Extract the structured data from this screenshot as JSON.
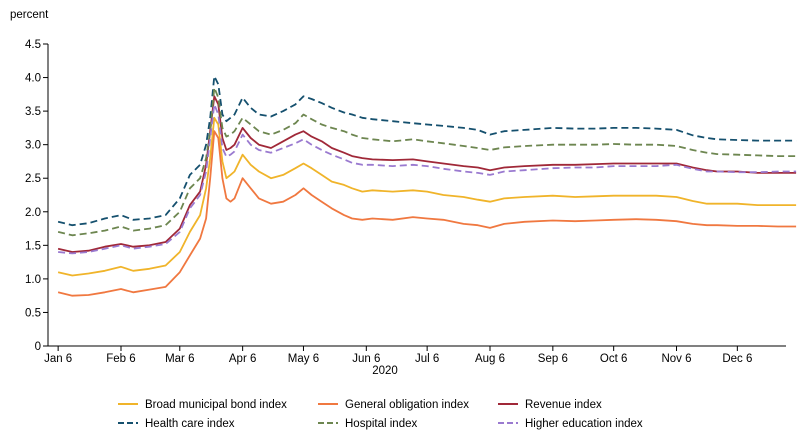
{
  "chart_data": {
    "type": "line",
    "ylabel": "percent",
    "xlabel": "2020",
    "ylim": [
      0,
      4.5
    ],
    "yticks": [
      "0",
      "0.5",
      "1.0",
      "1.5",
      "2.0",
      "2.5",
      "3.0",
      "3.5",
      "4.0",
      "4.5"
    ],
    "xlim": [
      0,
      364
    ],
    "xticks": [
      {
        "label": "Jan 6",
        "day": 5
      },
      {
        "label": "Feb 6",
        "day": 36
      },
      {
        "label": "Mar 6",
        "day": 65
      },
      {
        "label": "Apr 6",
        "day": 96
      },
      {
        "label": "May 6",
        "day": 126
      },
      {
        "label": "Jun 6",
        "day": 157
      },
      {
        "label": "Jul 6",
        "day": 187
      },
      {
        "label": "Aug 6",
        "day": 218
      },
      {
        "label": "Sep 6",
        "day": 249
      },
      {
        "label": "Oct 6",
        "day": 279
      },
      {
        "label": "Nov 6",
        "day": 310
      },
      {
        "label": "Dec 6",
        "day": 340
      }
    ],
    "x": [
      5,
      12,
      20,
      28,
      36,
      42,
      50,
      58,
      65,
      70,
      75,
      78,
      80,
      82,
      84,
      86,
      88,
      90,
      92,
      96,
      100,
      104,
      110,
      116,
      122,
      126,
      130,
      135,
      140,
      146,
      150,
      155,
      160,
      170,
      180,
      187,
      195,
      205,
      212,
      218,
      225,
      235,
      249,
      260,
      270,
      279,
      290,
      300,
      310,
      318,
      325,
      330,
      340,
      350,
      360,
      369
    ],
    "series": [
      {
        "name": "Broad municipal bond index",
        "color": "#f0b42a",
        "dash": false,
        "values": [
          1.1,
          1.05,
          1.08,
          1.12,
          1.18,
          1.12,
          1.15,
          1.2,
          1.4,
          1.7,
          1.95,
          2.35,
          2.8,
          3.4,
          3.3,
          2.75,
          2.5,
          2.55,
          2.6,
          2.85,
          2.7,
          2.6,
          2.5,
          2.55,
          2.65,
          2.72,
          2.65,
          2.55,
          2.45,
          2.4,
          2.35,
          2.3,
          2.32,
          2.3,
          2.32,
          2.3,
          2.25,
          2.22,
          2.18,
          2.15,
          2.2,
          2.22,
          2.24,
          2.22,
          2.23,
          2.24,
          2.24,
          2.24,
          2.22,
          2.16,
          2.12,
          2.12,
          2.12,
          2.1,
          2.1,
          2.1
        ]
      },
      {
        "name": "General obligation index",
        "color": "#f07840",
        "dash": false,
        "values": [
          0.8,
          0.75,
          0.76,
          0.8,
          0.85,
          0.8,
          0.84,
          0.88,
          1.1,
          1.35,
          1.6,
          1.9,
          2.5,
          3.2,
          3.1,
          2.5,
          2.2,
          2.15,
          2.2,
          2.5,
          2.35,
          2.2,
          2.12,
          2.15,
          2.25,
          2.35,
          2.25,
          2.15,
          2.05,
          1.95,
          1.9,
          1.88,
          1.9,
          1.88,
          1.92,
          1.9,
          1.88,
          1.82,
          1.8,
          1.76,
          1.82,
          1.85,
          1.87,
          1.86,
          1.87,
          1.88,
          1.89,
          1.88,
          1.86,
          1.82,
          1.8,
          1.8,
          1.79,
          1.79,
          1.78,
          1.78
        ]
      },
      {
        "name": "Revenue index",
        "color": "#a02838",
        "dash": false,
        "values": [
          1.45,
          1.4,
          1.42,
          1.48,
          1.52,
          1.48,
          1.5,
          1.55,
          1.75,
          2.1,
          2.3,
          2.7,
          3.2,
          3.72,
          3.6,
          3.1,
          2.92,
          2.95,
          3.0,
          3.25,
          3.1,
          3.0,
          2.95,
          3.05,
          3.15,
          3.2,
          3.12,
          3.05,
          2.95,
          2.88,
          2.83,
          2.8,
          2.78,
          2.77,
          2.78,
          2.75,
          2.72,
          2.68,
          2.66,
          2.62,
          2.66,
          2.68,
          2.7,
          2.7,
          2.71,
          2.72,
          2.72,
          2.72,
          2.72,
          2.66,
          2.62,
          2.6,
          2.6,
          2.58,
          2.58,
          2.58
        ]
      },
      {
        "name": "Health care index",
        "color": "#15506e",
        "dash": true,
        "values": [
          1.85,
          1.8,
          1.83,
          1.9,
          1.95,
          1.88,
          1.9,
          1.95,
          2.2,
          2.55,
          2.7,
          3.0,
          3.4,
          4.02,
          3.9,
          3.45,
          3.35,
          3.4,
          3.45,
          3.7,
          3.55,
          3.45,
          3.42,
          3.5,
          3.6,
          3.72,
          3.68,
          3.62,
          3.55,
          3.48,
          3.45,
          3.4,
          3.38,
          3.35,
          3.32,
          3.3,
          3.28,
          3.25,
          3.22,
          3.15,
          3.2,
          3.22,
          3.25,
          3.24,
          3.24,
          3.25,
          3.25,
          3.24,
          3.22,
          3.14,
          3.1,
          3.08,
          3.07,
          3.06,
          3.06,
          3.06
        ]
      },
      {
        "name": "Hospital index",
        "color": "#6d8650",
        "dash": true,
        "values": [
          1.7,
          1.65,
          1.68,
          1.72,
          1.78,
          1.72,
          1.75,
          1.8,
          2.0,
          2.35,
          2.5,
          2.8,
          3.2,
          3.85,
          3.7,
          3.25,
          3.12,
          3.15,
          3.2,
          3.4,
          3.3,
          3.2,
          3.15,
          3.22,
          3.32,
          3.45,
          3.38,
          3.3,
          3.25,
          3.2,
          3.15,
          3.1,
          3.08,
          3.05,
          3.08,
          3.05,
          3.02,
          2.98,
          2.95,
          2.92,
          2.96,
          2.98,
          3.0,
          3.0,
          3.0,
          3.01,
          3.0,
          3.0,
          2.98,
          2.92,
          2.88,
          2.86,
          2.85,
          2.84,
          2.83,
          2.83
        ]
      },
      {
        "name": "Higher education index",
        "color": "#9a7ad0",
        "dash": true,
        "values": [
          1.4,
          1.38,
          1.4,
          1.45,
          1.5,
          1.45,
          1.48,
          1.52,
          1.7,
          2.05,
          2.25,
          2.6,
          3.1,
          3.6,
          3.45,
          2.95,
          2.82,
          2.85,
          2.9,
          3.15,
          3.0,
          2.92,
          2.88,
          2.95,
          3.02,
          3.08,
          3.0,
          2.92,
          2.85,
          2.78,
          2.73,
          2.7,
          2.7,
          2.68,
          2.7,
          2.68,
          2.64,
          2.6,
          2.58,
          2.55,
          2.6,
          2.62,
          2.65,
          2.66,
          2.66,
          2.68,
          2.68,
          2.68,
          2.7,
          2.64,
          2.6,
          2.6,
          2.59,
          2.59,
          2.6,
          2.6
        ]
      }
    ],
    "legend": [
      {
        "label": "Broad municipal bond index",
        "color": "#f0b42a",
        "dash": false
      },
      {
        "label": "General obligation index",
        "color": "#f07840",
        "dash": false
      },
      {
        "label": "Revenue index",
        "color": "#a02838",
        "dash": false
      },
      {
        "label": "Health care index",
        "color": "#15506e",
        "dash": true
      },
      {
        "label": "Hospital index",
        "color": "#6d8650",
        "dash": true
      },
      {
        "label": "Higher education index",
        "color": "#9a7ad0",
        "dash": true
      }
    ],
    "legend_position": "bottom"
  }
}
